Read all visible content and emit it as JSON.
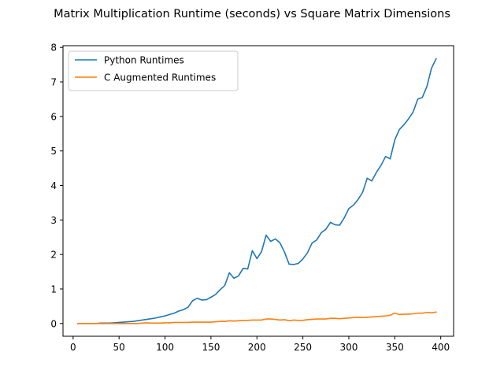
{
  "chart_data": {
    "type": "line",
    "title": "Matrix Multiplication Runtime (seconds) vs Square Matrix Dimensions",
    "xlabel": "",
    "ylabel": "",
    "xlim": [
      -11,
      414
    ],
    "ylim": [
      -0.37,
      8.05
    ],
    "xticks": [
      0,
      50,
      100,
      150,
      200,
      250,
      300,
      350,
      400
    ],
    "yticks": [
      0,
      1,
      2,
      3,
      4,
      5,
      6,
      7,
      8
    ],
    "grid": false,
    "legend_position": "top-left",
    "x": [
      5,
      10,
      15,
      20,
      25,
      30,
      35,
      40,
      45,
      50,
      55,
      60,
      65,
      70,
      75,
      80,
      85,
      90,
      95,
      100,
      105,
      110,
      115,
      120,
      125,
      130,
      135,
      140,
      145,
      150,
      155,
      160,
      165,
      170,
      175,
      180,
      185,
      190,
      195,
      200,
      205,
      210,
      215,
      220,
      225,
      230,
      235,
      240,
      245,
      250,
      255,
      260,
      265,
      270,
      275,
      280,
      285,
      290,
      295,
      300,
      305,
      310,
      315,
      320,
      325,
      330,
      335,
      340,
      345,
      350,
      355,
      360,
      365,
      370,
      375,
      380,
      385,
      390,
      395
    ],
    "series": [
      {
        "name": "Python Runtimes",
        "color": "#1f77b4",
        "values": [
          0.0,
          0.0,
          0.0,
          0.0,
          0.0,
          0.01,
          0.01,
          0.01,
          0.02,
          0.03,
          0.04,
          0.05,
          0.06,
          0.08,
          0.1,
          0.12,
          0.14,
          0.16,
          0.19,
          0.22,
          0.26,
          0.3,
          0.36,
          0.4,
          0.47,
          0.66,
          0.73,
          0.68,
          0.69,
          0.76,
          0.84,
          0.98,
          1.1,
          1.47,
          1.31,
          1.38,
          1.6,
          1.58,
          2.11,
          1.88,
          2.08,
          2.56,
          2.38,
          2.45,
          2.34,
          2.07,
          1.72,
          1.71,
          1.74,
          1.87,
          2.05,
          2.33,
          2.42,
          2.63,
          2.73,
          2.93,
          2.86,
          2.85,
          3.06,
          3.33,
          3.43,
          3.59,
          3.8,
          4.21,
          4.13,
          4.38,
          4.58,
          4.84,
          4.77,
          5.32,
          5.62,
          5.76,
          5.93,
          6.13,
          6.5,
          6.55,
          6.87,
          7.4,
          7.67
        ]
      },
      {
        "name": "C Augmented Runtimes",
        "color": "#ff7f0e",
        "values": [
          0.0,
          0.0,
          0.0,
          0.0,
          0.0,
          0.0,
          0.0,
          0.0,
          0.0,
          0.0,
          0.0,
          0.0,
          0.0,
          0.0,
          0.01,
          0.02,
          0.01,
          0.01,
          0.01,
          0.02,
          0.02,
          0.03,
          0.03,
          0.03,
          0.03,
          0.04,
          0.04,
          0.04,
          0.04,
          0.04,
          0.05,
          0.06,
          0.06,
          0.08,
          0.07,
          0.08,
          0.09,
          0.09,
          0.1,
          0.1,
          0.1,
          0.13,
          0.13,
          0.12,
          0.1,
          0.11,
          0.08,
          0.1,
          0.09,
          0.09,
          0.11,
          0.12,
          0.13,
          0.13,
          0.13,
          0.15,
          0.15,
          0.14,
          0.15,
          0.16,
          0.17,
          0.18,
          0.17,
          0.18,
          0.19,
          0.2,
          0.21,
          0.22,
          0.24,
          0.3,
          0.26,
          0.27,
          0.27,
          0.28,
          0.3,
          0.3,
          0.32,
          0.31,
          0.33
        ]
      }
    ]
  }
}
